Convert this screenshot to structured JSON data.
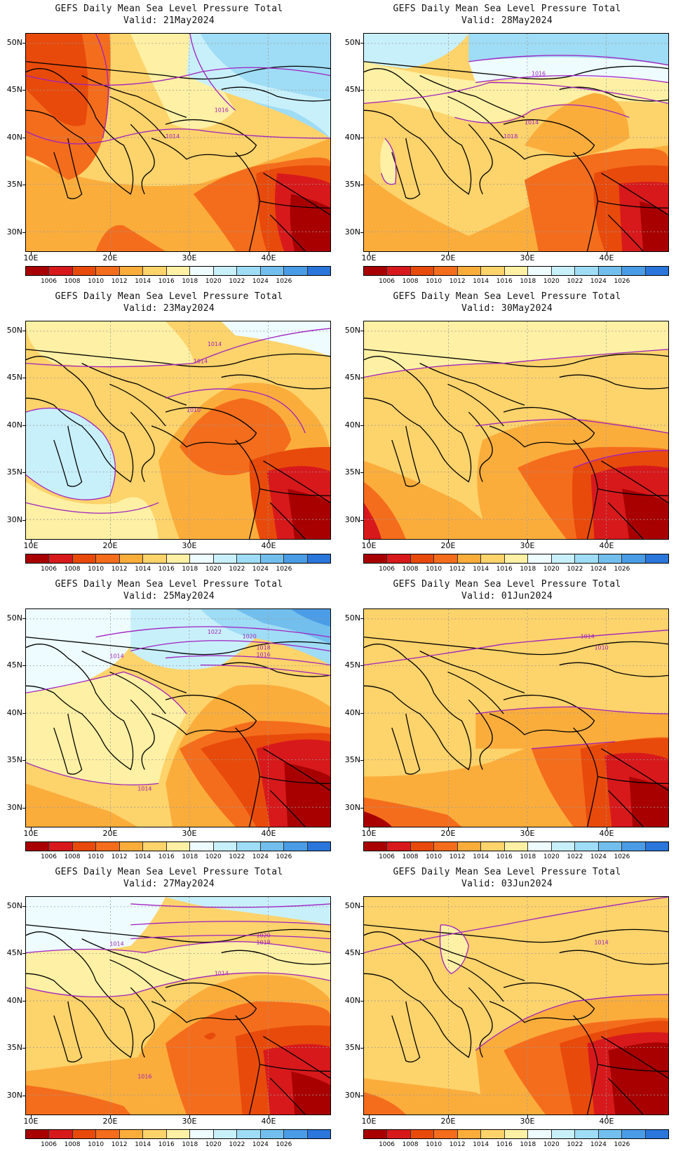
{
  "title": "GEFS Daily Mean Sea Level Pressure Total",
  "lat_labels": [
    "50N",
    "45N",
    "40N",
    "35N",
    "30N"
  ],
  "lon_labels": [
    "10E",
    "20E",
    "30E",
    "40E"
  ],
  "colorbar": {
    "colors": [
      "#a80000",
      "#d7191c",
      "#e84a0b",
      "#f46d1c",
      "#fbad3c",
      "#fdd36b",
      "#fef0a4",
      "#eefcff",
      "#c8f0fb",
      "#9fdcf5",
      "#72bfee",
      "#4a9ce6",
      "#2a76db"
    ],
    "labels": [
      "1006",
      "1008",
      "1010",
      "1012",
      "1014",
      "1016",
      "1018",
      "1020",
      "1022",
      "1024",
      "1026"
    ]
  },
  "panels": [
    {
      "valid": "Valid: 21May2024",
      "contours": [
        "1016",
        "1014"
      ]
    },
    {
      "valid": "Valid: 28May2024",
      "contours": [
        "1018",
        "1016",
        "1014"
      ]
    },
    {
      "valid": "Valid: 23May2024",
      "contours": [
        "1014",
        "1010",
        "1014"
      ]
    },
    {
      "valid": "Valid: 30May2024",
      "contours": []
    },
    {
      "valid": "Valid: 25May2024",
      "contours": [
        "1022",
        "1020",
        "1018",
        "1016",
        "1014",
        "1014"
      ]
    },
    {
      "valid": "Valid: 01Jun2024",
      "contours": [
        "1014",
        "1010"
      ]
    },
    {
      "valid": "Valid: 27May2024",
      "contours": [
        "1020",
        "1018",
        "1016",
        "1014",
        "1014"
      ]
    },
    {
      "valid": "Valid: 03Jun2024",
      "contours": [
        "1014"
      ]
    }
  ]
}
